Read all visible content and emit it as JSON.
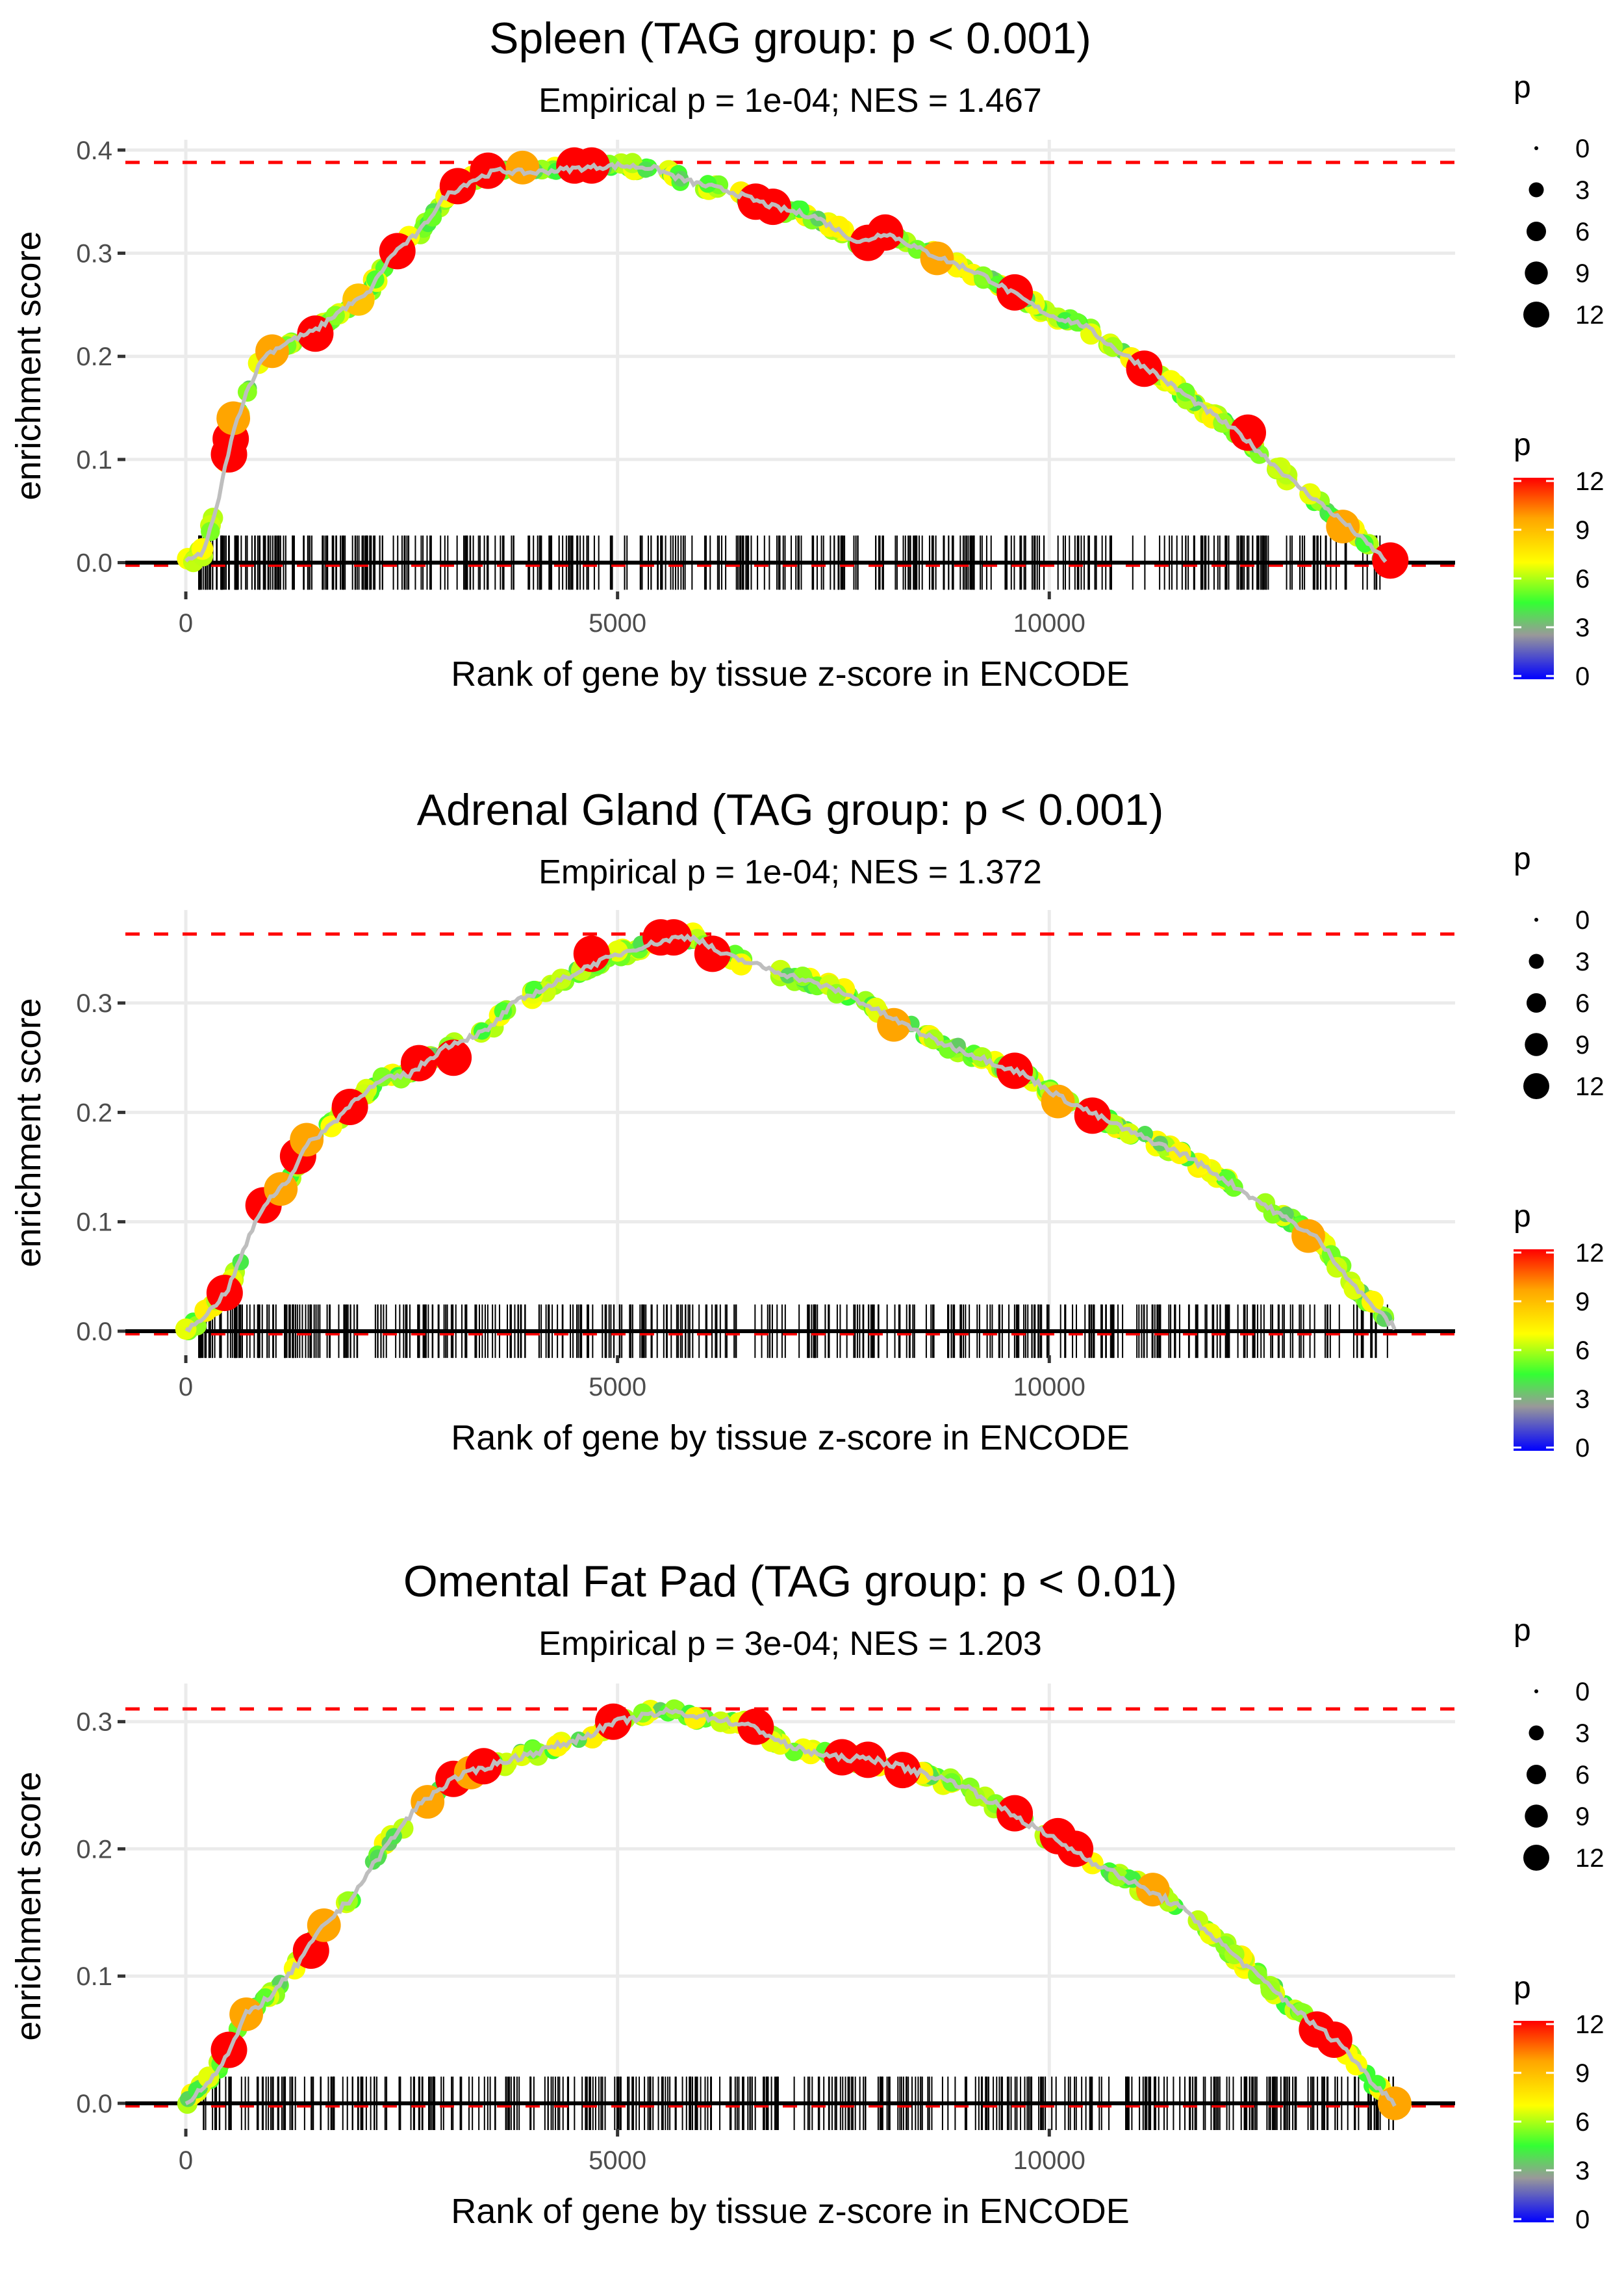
{
  "chart_data": [
    {
      "type": "scatter",
      "title": "Spleen (TAG group: p < 0.001)",
      "subtitle": "Empirical p = 1e-04; NES = 1.467",
      "xlabel": "Rank of gene by tissue z-score in ENCODE",
      "ylabel": "enrichment score",
      "xlim": [
        -700,
        14700
      ],
      "ylim": [
        -0.028,
        0.41
      ],
      "x_ticks": [
        0,
        5000,
        10000
      ],
      "x_tick_labels": [
        "0",
        "5000",
        "10000"
      ],
      "y_ticks": [
        0.0,
        0.1,
        0.2,
        0.3,
        0.4
      ],
      "y_tick_labels": [
        "0.0",
        "0.1",
        "0.2",
        "0.3",
        "0.4"
      ],
      "max_es": 0.388,
      "grid": true,
      "curve": [
        [
          0,
          0
        ],
        [
          200,
          0.01
        ],
        [
          350,
          0.05
        ],
        [
          500,
          0.11
        ],
        [
          600,
          0.14
        ],
        [
          700,
          0.165
        ],
        [
          900,
          0.2
        ],
        [
          1200,
          0.215
        ],
        [
          1500,
          0.225
        ],
        [
          1800,
          0.245
        ],
        [
          2100,
          0.26
        ],
        [
          2400,
          0.3
        ],
        [
          2700,
          0.32
        ],
        [
          3000,
          0.355
        ],
        [
          3300,
          0.37
        ],
        [
          3600,
          0.38
        ],
        [
          4000,
          0.378
        ],
        [
          4500,
          0.382
        ],
        [
          5000,
          0.385
        ],
        [
          5400,
          0.383
        ],
        [
          5800,
          0.37
        ],
        [
          6300,
          0.36
        ],
        [
          6800,
          0.345
        ],
        [
          7300,
          0.335
        ],
        [
          7800,
          0.31
        ],
        [
          8100,
          0.32
        ],
        [
          8600,
          0.3
        ],
        [
          9200,
          0.28
        ],
        [
          9600,
          0.26
        ],
        [
          10000,
          0.24
        ],
        [
          10400,
          0.23
        ],
        [
          10800,
          0.205
        ],
        [
          11200,
          0.185
        ],
        [
          11700,
          0.155
        ],
        [
          12200,
          0.125
        ],
        [
          12800,
          0.08
        ],
        [
          13400,
          0.04
        ],
        [
          13900,
          0.002
        ]
      ],
      "highlight_points": [
        [
          500,
          0.105,
          12
        ],
        [
          520,
          0.12,
          12
        ],
        [
          550,
          0.14,
          10
        ],
        [
          1500,
          0.222,
          12
        ],
        [
          2450,
          0.302,
          12
        ],
        [
          3150,
          0.365,
          12
        ],
        [
          3500,
          0.38,
          12
        ],
        [
          4500,
          0.385,
          12
        ],
        [
          4700,
          0.385,
          12
        ],
        [
          3900,
          0.383,
          10
        ],
        [
          6600,
          0.35,
          12
        ],
        [
          6800,
          0.345,
          12
        ],
        [
          7900,
          0.31,
          12
        ],
        [
          8100,
          0.32,
          12
        ],
        [
          8700,
          0.295,
          10
        ],
        [
          9600,
          0.262,
          12
        ],
        [
          11100,
          0.188,
          12
        ],
        [
          12300,
          0.126,
          12
        ],
        [
          13400,
          0.035,
          10
        ],
        [
          13950,
          0.002,
          12
        ],
        [
          1000,
          0.205,
          10
        ],
        [
          2000,
          0.255,
          9
        ]
      ],
      "barcode_density": "dense near 0-1000, spread to ~13900"
    },
    {
      "type": "scatter",
      "title": "Adrenal Gland (TAG group: p < 0.001)",
      "subtitle": "Empirical p = 1e-04; NES = 1.372",
      "xlabel": "Rank of gene by tissue z-score in ENCODE",
      "ylabel": "enrichment score",
      "xlim": [
        -700,
        14700
      ],
      "ylim": [
        -0.022,
        0.385
      ],
      "x_ticks": [
        0,
        5000,
        10000
      ],
      "x_tick_labels": [
        "0",
        "5000",
        "10000"
      ],
      "y_ticks": [
        0.0,
        0.1,
        0.2,
        0.3
      ],
      "y_tick_labels": [
        "0.0",
        "0.1",
        "0.2",
        "0.3"
      ],
      "max_es": 0.363,
      "grid": true,
      "curve": [
        [
          0,
          0
        ],
        [
          300,
          0.02
        ],
        [
          500,
          0.04
        ],
        [
          700,
          0.08
        ],
        [
          900,
          0.115
        ],
        [
          1200,
          0.14
        ],
        [
          1400,
          0.17
        ],
        [
          1700,
          0.19
        ],
        [
          2000,
          0.215
        ],
        [
          2300,
          0.23
        ],
        [
          2600,
          0.235
        ],
        [
          3000,
          0.26
        ],
        [
          3500,
          0.275
        ],
        [
          3800,
          0.3
        ],
        [
          4200,
          0.315
        ],
        [
          4700,
          0.335
        ],
        [
          5200,
          0.35
        ],
        [
          5700,
          0.36
        ],
        [
          5900,
          0.36
        ],
        [
          6200,
          0.345
        ],
        [
          6600,
          0.335
        ],
        [
          7000,
          0.325
        ],
        [
          7600,
          0.31
        ],
        [
          8200,
          0.285
        ],
        [
          8700,
          0.265
        ],
        [
          9200,
          0.25
        ],
        [
          9700,
          0.235
        ],
        [
          10100,
          0.215
        ],
        [
          10600,
          0.195
        ],
        [
          11000,
          0.18
        ],
        [
          11600,
          0.16
        ],
        [
          12100,
          0.135
        ],
        [
          12600,
          0.11
        ],
        [
          13100,
          0.085
        ],
        [
          13600,
          0.035
        ],
        [
          14000,
          0.003
        ]
      ],
      "highlight_points": [
        [
          450,
          0.035,
          12
        ],
        [
          900,
          0.115,
          12
        ],
        [
          1100,
          0.13,
          10
        ],
        [
          1300,
          0.16,
          12
        ],
        [
          1400,
          0.175,
          10
        ],
        [
          1900,
          0.205,
          12
        ],
        [
          2700,
          0.245,
          12
        ],
        [
          3100,
          0.25,
          12
        ],
        [
          4700,
          0.345,
          12
        ],
        [
          5500,
          0.36,
          12
        ],
        [
          5650,
          0.36,
          12
        ],
        [
          6100,
          0.345,
          12
        ],
        [
          8200,
          0.28,
          10
        ],
        [
          9600,
          0.238,
          12
        ],
        [
          10100,
          0.21,
          10
        ],
        [
          10500,
          0.197,
          12
        ],
        [
          13000,
          0.087,
          10
        ]
      ],
      "barcode_density": "dense near 0-2000, spread to ~13900"
    },
    {
      "type": "scatter",
      "title": "Omental Fat Pad (TAG group: p < 0.01)",
      "subtitle": "Empirical p = 3e-04; NES = 1.203",
      "xlabel": "Rank of gene by tissue z-score in ENCODE",
      "ylabel": "enrichment score",
      "xlim": [
        -700,
        14700
      ],
      "ylim": [
        -0.02,
        0.33
      ],
      "x_ticks": [
        0,
        5000,
        10000
      ],
      "x_tick_labels": [
        "0",
        "5000",
        "10000"
      ],
      "y_ticks": [
        0.0,
        0.1,
        0.2,
        0.3
      ],
      "y_tick_labels": [
        "0.0",
        "0.1",
        "0.2",
        "0.3"
      ],
      "max_es": 0.31,
      "grid": true,
      "curve": [
        [
          0,
          0
        ],
        [
          300,
          0.02
        ],
        [
          500,
          0.04
        ],
        [
          700,
          0.07
        ],
        [
          1000,
          0.085
        ],
        [
          1300,
          0.11
        ],
        [
          1600,
          0.14
        ],
        [
          1900,
          0.16
        ],
        [
          2300,
          0.2
        ],
        [
          2700,
          0.235
        ],
        [
          3100,
          0.255
        ],
        [
          3500,
          0.265
        ],
        [
          4000,
          0.275
        ],
        [
          4500,
          0.285
        ],
        [
          5000,
          0.3
        ],
        [
          5600,
          0.308
        ],
        [
          6100,
          0.303
        ],
        [
          6600,
          0.295
        ],
        [
          7000,
          0.28
        ],
        [
          7500,
          0.272
        ],
        [
          8000,
          0.27
        ],
        [
          8500,
          0.26
        ],
        [
          9000,
          0.25
        ],
        [
          9500,
          0.23
        ],
        [
          10000,
          0.21
        ],
        [
          10500,
          0.19
        ],
        [
          11000,
          0.172
        ],
        [
          11500,
          0.155
        ],
        [
          12000,
          0.125
        ],
        [
          12500,
          0.095
        ],
        [
          13000,
          0.065
        ],
        [
          13400,
          0.045
        ],
        [
          13700,
          0.02
        ],
        [
          14000,
          0.0
        ]
      ],
      "highlight_points": [
        [
          500,
          0.042,
          12
        ],
        [
          700,
          0.07,
          10
        ],
        [
          1450,
          0.12,
          12
        ],
        [
          1600,
          0.14,
          10
        ],
        [
          2800,
          0.237,
          10
        ],
        [
          3100,
          0.255,
          12
        ],
        [
          3300,
          0.26,
          10
        ],
        [
          3450,
          0.265,
          12
        ],
        [
          4950,
          0.3,
          12
        ],
        [
          6600,
          0.296,
          12
        ],
        [
          7600,
          0.272,
          12
        ],
        [
          7900,
          0.27,
          12
        ],
        [
          8300,
          0.262,
          12
        ],
        [
          9600,
          0.228,
          12
        ],
        [
          10100,
          0.21,
          12
        ],
        [
          10300,
          0.2,
          12
        ],
        [
          11200,
          0.168,
          10
        ],
        [
          13100,
          0.058,
          12
        ],
        [
          13300,
          0.05,
          12
        ],
        [
          14000,
          0.0,
          10
        ]
      ],
      "barcode_density": "uniformly dense from ~200 to ~14000"
    }
  ],
  "legend": {
    "size_title": "p",
    "size_levels": [
      "0",
      "3",
      "6",
      "9",
      "12"
    ],
    "color_title": "p",
    "color_labels": [
      "12",
      "9",
      "6",
      "3",
      "0"
    ],
    "color_stops": [
      "#ff0000",
      "#ffa500",
      "#ffff00",
      "#33ff33",
      "#999999",
      "#0000ff"
    ]
  }
}
